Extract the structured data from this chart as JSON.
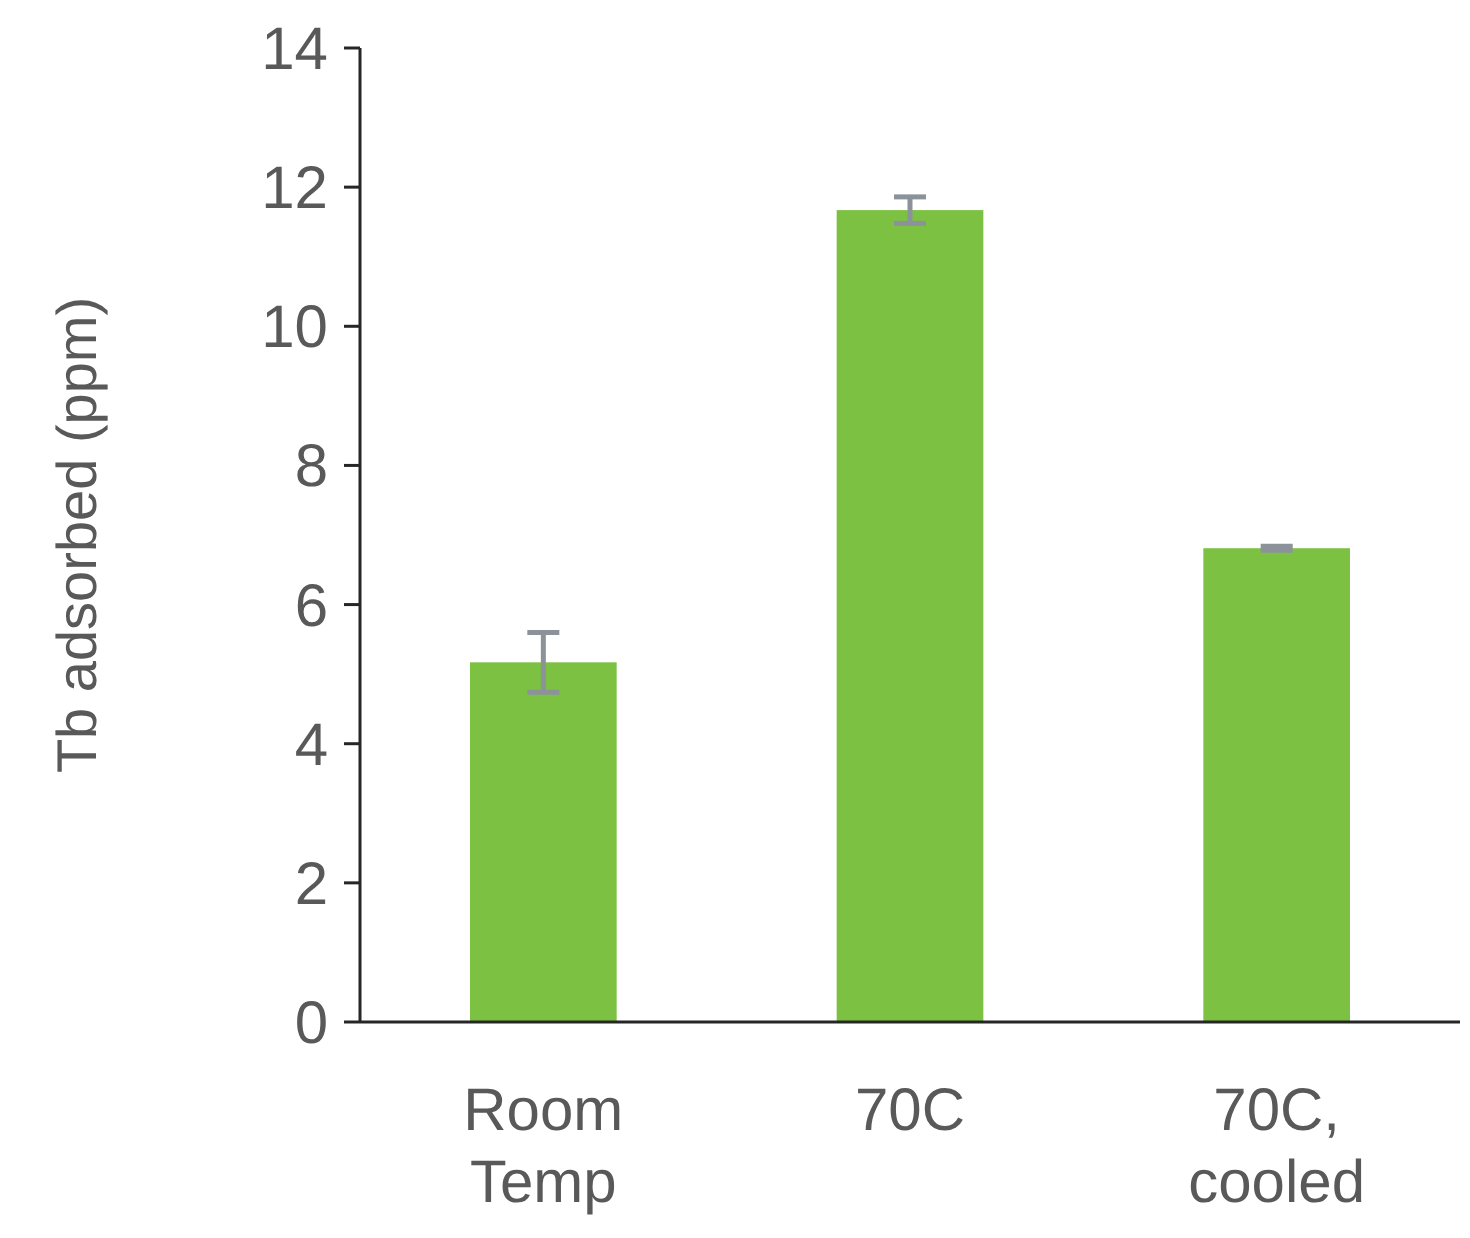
{
  "chart_data": {
    "type": "bar",
    "ylabel": "Tb adsorbed (ppm)",
    "categories": [
      "Room Temp",
      "70C",
      "70C, cooled"
    ],
    "values": [
      5.17,
      11.67,
      6.81
    ],
    "errors": [
      0.43,
      0.19,
      0.03
    ],
    "color": "#7cc142",
    "ylim": [
      0,
      14
    ],
    "yticks": [
      0,
      2,
      4,
      6,
      8,
      10,
      12,
      14
    ],
    "grid": false
  }
}
